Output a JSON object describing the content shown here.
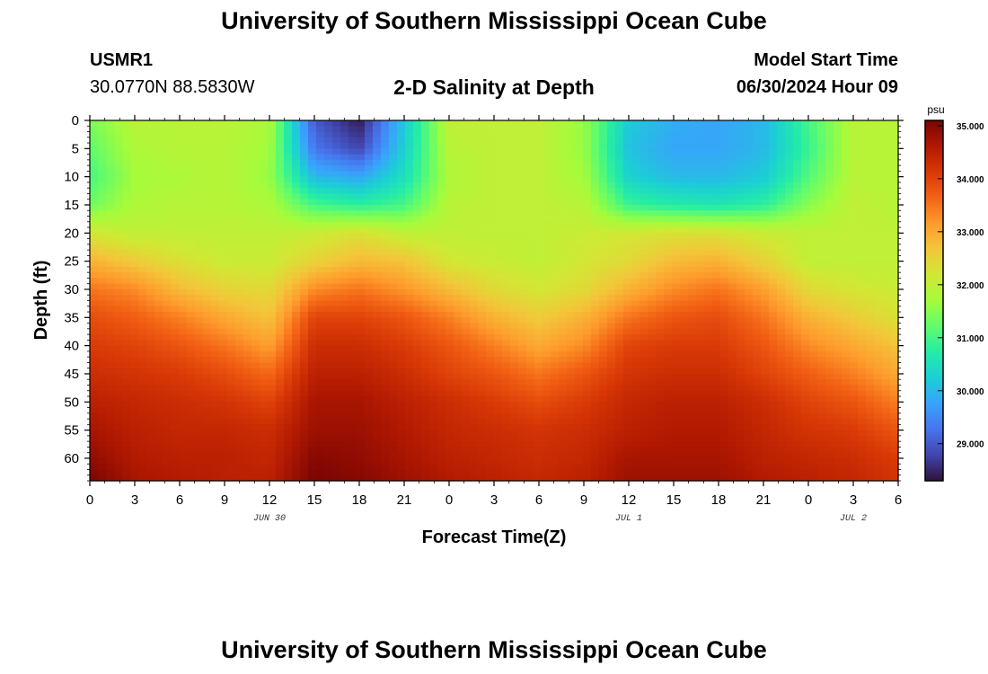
{
  "header": {
    "title": "University of Southern Mississippi Ocean Cube",
    "station_id": "USMR1",
    "coordinates": "30.0770N  88.5830W",
    "plot_title": "2-D Salinity at Depth",
    "start_label": "Model Start Time",
    "start_value": "06/30/2024 Hour 09"
  },
  "footer": {
    "title": "University of Southern Mississippi Ocean Cube"
  },
  "chart_data": {
    "type": "heatmap",
    "title": "2-D Salinity at Depth",
    "xlabel": "Forecast Time(Z)",
    "ylabel": "Depth (ft)",
    "x_tick_labels": [
      "0",
      "3",
      "6",
      "9",
      "12",
      "15",
      "18",
      "21",
      "0",
      "3",
      "6",
      "9",
      "12",
      "15",
      "18",
      "21",
      "0",
      "3",
      "6"
    ],
    "date_labels": [
      {
        "text": "JUN 30",
        "at_tick": 4
      },
      {
        "text": "JUL 1",
        "at_tick": 12
      },
      {
        "text": "JUL 2",
        "at_tick": 17
      }
    ],
    "xlim_hours": [
      0,
      54
    ],
    "y_tick_labels": [
      "0",
      "5",
      "10",
      "15",
      "20",
      "25",
      "30",
      "35",
      "40",
      "45",
      "50",
      "55",
      "60"
    ],
    "ylim_ft": [
      0,
      64
    ],
    "y_inverted": true,
    "colorbar": {
      "unit": "psu",
      "range": [
        28.3,
        35.1
      ],
      "tick_labels": [
        "35.000",
        "34.000",
        "33.000",
        "32.000",
        "31.000",
        "30.000",
        "29.000"
      ],
      "tick_values": [
        35,
        34,
        33,
        32,
        31,
        30,
        29
      ],
      "colors": [
        "#30123b",
        "#4145ab",
        "#4675ed",
        "#39a2fc",
        "#1bcfd4",
        "#24eca6",
        "#61fc6c",
        "#a4fc3b",
        "#d1e834",
        "#f3c63a",
        "#fe9b2d",
        "#f36315",
        "#d93806",
        "#b11901",
        "#7a0403"
      ]
    },
    "time_hours": [
      0,
      3,
      6,
      9,
      12,
      15,
      18,
      21,
      24,
      27,
      30,
      33,
      36,
      39,
      42,
      45,
      48,
      51,
      54
    ],
    "depth_ft": [
      0,
      5,
      10,
      15,
      20,
      25,
      30,
      35,
      40,
      45,
      50,
      55,
      60,
      64
    ],
    "salinity_psu": [
      [
        31.4,
        31.9,
        31.9,
        31.9,
        31.8,
        29.0,
        28.4,
        30.2,
        32.0,
        32.0,
        32.0,
        31.6,
        30.2,
        29.9,
        29.8,
        30.0,
        31.0,
        31.9,
        31.9
      ],
      [
        31.2,
        31.8,
        31.9,
        31.9,
        31.7,
        29.3,
        28.8,
        30.3,
        31.9,
        32.0,
        32.0,
        31.6,
        30.1,
        29.8,
        29.8,
        30.0,
        30.9,
        31.9,
        31.9
      ],
      [
        31.0,
        31.7,
        31.8,
        31.9,
        31.6,
        30.0,
        29.8,
        30.5,
        31.8,
        32.0,
        32.0,
        31.7,
        30.3,
        30.0,
        30.0,
        30.2,
        31.1,
        31.9,
        31.9
      ],
      [
        31.3,
        31.8,
        31.9,
        31.9,
        31.8,
        31.0,
        30.8,
        31.0,
        31.9,
        32.0,
        32.0,
        31.9,
        30.9,
        30.7,
        30.6,
        30.8,
        31.5,
        32.0,
        31.9
      ],
      [
        32.2,
        32.0,
        32.0,
        32.0,
        32.0,
        32.1,
        32.3,
        32.0,
        32.0,
        32.0,
        32.0,
        32.1,
        32.2,
        32.3,
        32.3,
        32.1,
        32.0,
        32.0,
        32.0
      ],
      [
        32.9,
        32.6,
        32.3,
        32.1,
        32.1,
        32.5,
        32.8,
        32.7,
        32.2,
        32.1,
        32.0,
        32.2,
        32.4,
        32.8,
        32.9,
        32.5,
        32.0,
        32.0,
        32.0
      ],
      [
        33.5,
        33.3,
        32.8,
        32.5,
        32.4,
        33.3,
        33.5,
        33.2,
        32.8,
        32.4,
        32.2,
        32.4,
        32.9,
        33.3,
        33.5,
        33.1,
        32.4,
        32.2,
        32.1
      ],
      [
        33.9,
        33.7,
        33.4,
        33.0,
        32.7,
        34.0,
        34.0,
        33.8,
        33.4,
        32.9,
        32.6,
        32.9,
        33.5,
        33.8,
        33.9,
        33.5,
        32.9,
        32.6,
        32.3
      ],
      [
        34.1,
        34.0,
        33.8,
        33.5,
        33.1,
        34.3,
        34.3,
        34.1,
        33.8,
        33.4,
        33.0,
        33.3,
        34.0,
        34.1,
        34.1,
        33.8,
        33.3,
        33.0,
        32.7
      ],
      [
        34.3,
        34.2,
        34.1,
        33.9,
        33.6,
        34.5,
        34.5,
        34.3,
        34.0,
        33.8,
        33.5,
        33.8,
        34.2,
        34.3,
        34.3,
        34.0,
        33.7,
        33.4,
        33.0
      ],
      [
        34.5,
        34.4,
        34.3,
        34.2,
        34.0,
        34.7,
        34.7,
        34.5,
        34.3,
        34.1,
        33.9,
        34.1,
        34.4,
        34.5,
        34.5,
        34.3,
        34.0,
        33.8,
        33.4
      ],
      [
        34.7,
        34.5,
        34.4,
        34.4,
        34.3,
        34.8,
        34.8,
        34.6,
        34.4,
        34.3,
        34.2,
        34.3,
        34.5,
        34.6,
        34.6,
        34.4,
        34.2,
        34.1,
        33.8
      ],
      [
        34.9,
        34.6,
        34.5,
        34.5,
        34.4,
        35.0,
        34.9,
        34.7,
        34.5,
        34.4,
        34.3,
        34.4,
        34.7,
        34.7,
        34.7,
        34.5,
        34.4,
        34.3,
        34.1
      ],
      [
        35.1,
        34.7,
        34.6,
        34.5,
        34.5,
        35.1,
        35.0,
        34.8,
        34.6,
        34.5,
        34.4,
        34.5,
        34.8,
        34.8,
        34.8,
        34.6,
        34.5,
        34.4,
        34.2
      ]
    ]
  }
}
